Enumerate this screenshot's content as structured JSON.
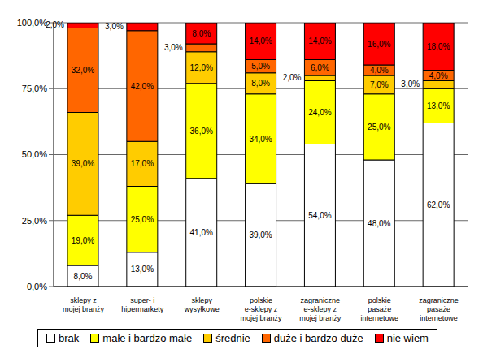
{
  "chart_data": {
    "type": "bar",
    "stacked": true,
    "grid": true,
    "data_labels": true,
    "legend": "bottom",
    "categories": [
      "sklepy z mojej branży",
      "super- i hipermarkety",
      "sklepy wysyłkowe",
      "polskie e-sklepy z mojej branży",
      "zagraniczne e-sklepy z mojej branży",
      "polskie pasaże internetowe",
      "zagraniczne pasaże internetowe"
    ],
    "ylim": [
      0,
      100
    ],
    "yticks": [
      {
        "value": 0,
        "label": "0,0%"
      },
      {
        "value": 25,
        "label": "25,0%"
      },
      {
        "value": 50,
        "label": "50,0%"
      },
      {
        "value": 75,
        "label": "75,0%"
      },
      {
        "value": 100,
        "label": "100,0%"
      }
    ],
    "series": [
      {
        "name": "brak",
        "color": "#ffffff",
        "values": [
          8,
          13,
          41,
          39,
          54,
          48,
          62
        ],
        "value_labels": [
          "8,0%",
          "13,0%",
          "41,0%",
          "39,0%",
          "54,0%",
          "48,0%",
          "62,0%"
        ]
      },
      {
        "name": "małe i bardzo małe",
        "color": "#ffff00",
        "values": [
          19,
          25,
          36,
          34,
          24,
          25,
          13
        ],
        "value_labels": [
          "19,0%",
          "25,0%",
          "36,0%",
          "34,0%",
          "24,0%",
          "25,0%",
          "13,0%"
        ]
      },
      {
        "name": "średnie",
        "color": "#ffcc00",
        "values": [
          39,
          17,
          12,
          8,
          2,
          7,
          3
        ],
        "value_labels": [
          "39,0%",
          "17,0%",
          "12,0%",
          "8,0%",
          "2,0%",
          "7,0%",
          "3,0%"
        ]
      },
      {
        "name": "duże i bardzo duże",
        "color": "#ff6600",
        "values": [
          32,
          42,
          3,
          5,
          6,
          4,
          4
        ],
        "value_labels": [
          "32,0%",
          "42,0%",
          "3,0%",
          "5,0%",
          "6,0%",
          "4,0%",
          "4,0%"
        ]
      },
      {
        "name": "nie wiem",
        "color": "#ff0000",
        "values": [
          2,
          3,
          8,
          14,
          14,
          16,
          18
        ],
        "value_labels": [
          "2,0%",
          "3,0%",
          "8,0%",
          "14,0%",
          "14,0%",
          "16,0%",
          "18,0%"
        ]
      }
    ]
  }
}
